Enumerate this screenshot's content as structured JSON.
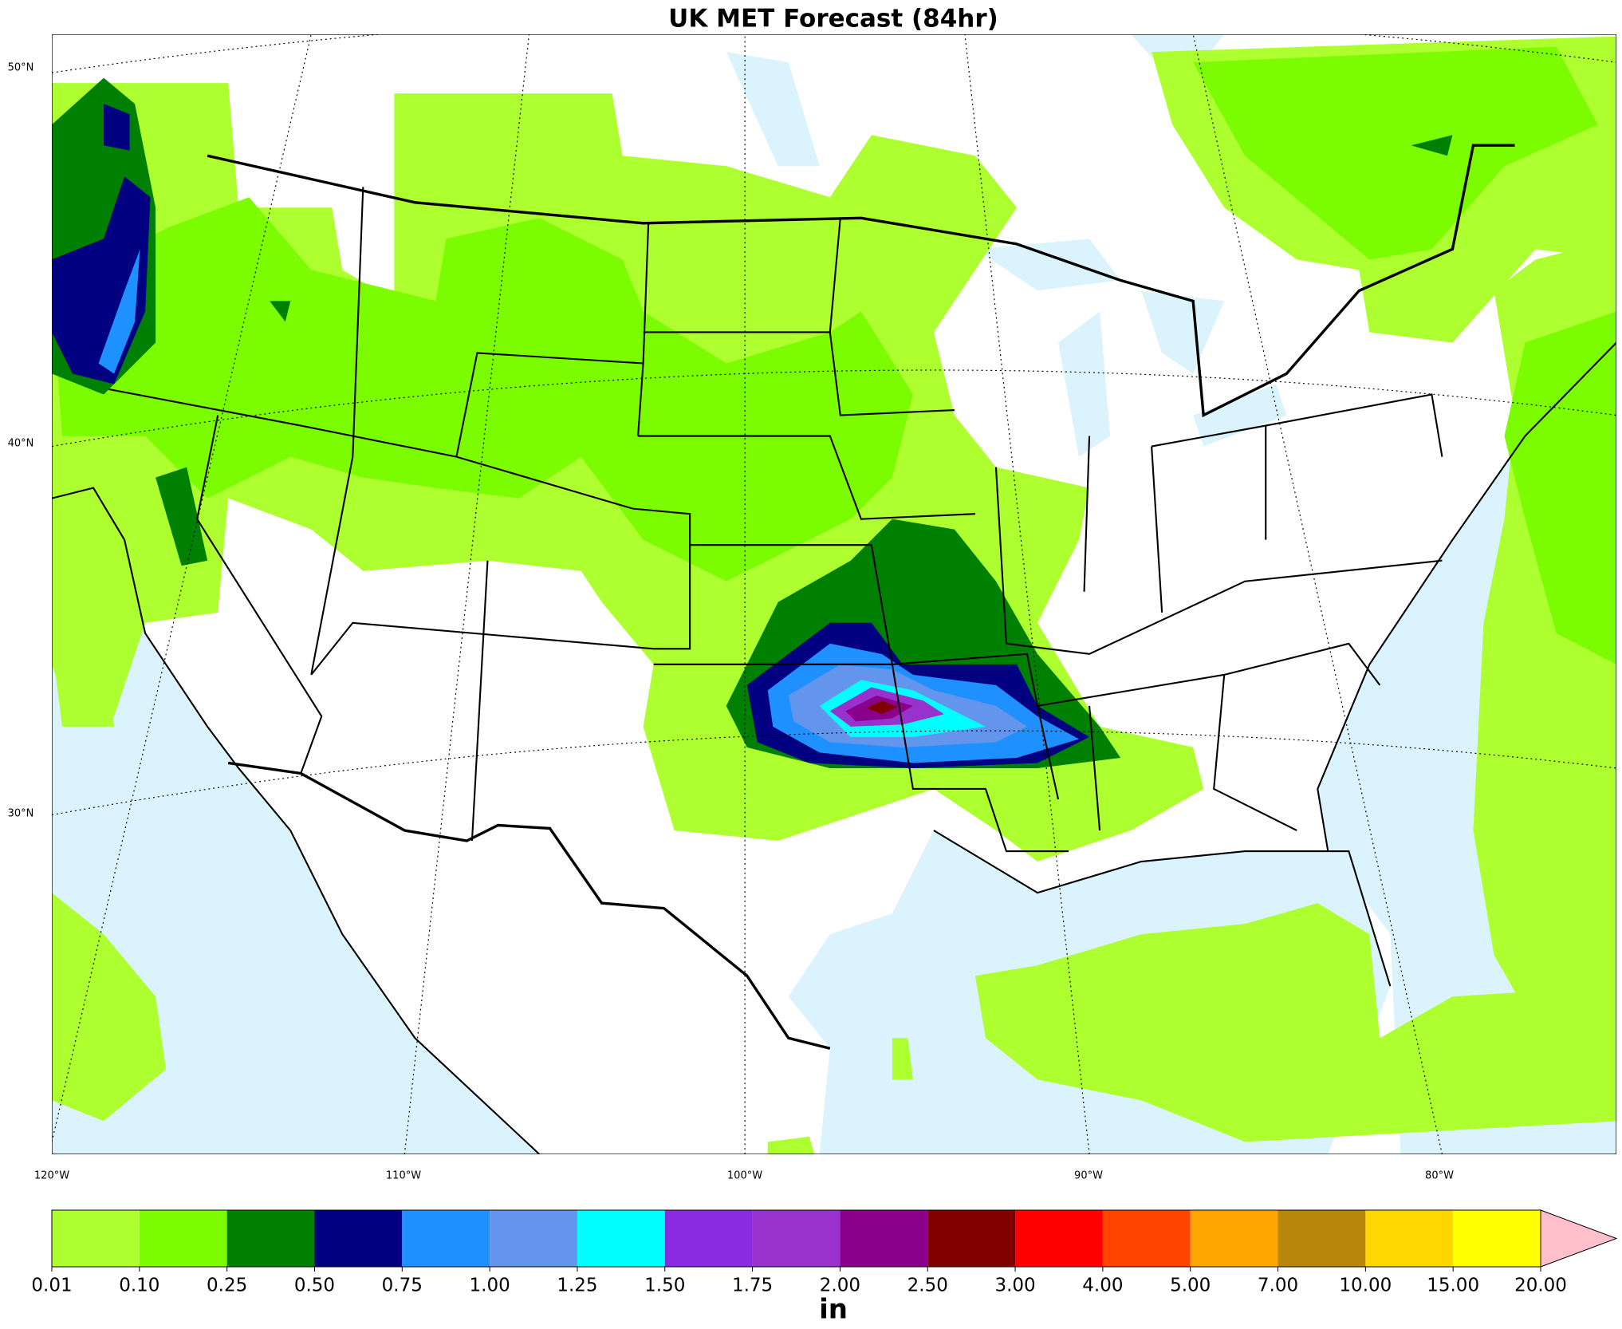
{
  "title": "UK MET Forecast (84hr)",
  "map": {
    "lat_labels": [
      "50°N",
      "40°N",
      "30°N"
    ],
    "lon_labels": [
      "120°W",
      "110°W",
      "100°W",
      "90°W",
      "80°W"
    ]
  },
  "colorbar": {
    "label": "in",
    "ticks": [
      {
        "value": 0.01,
        "label": "0.01"
      },
      {
        "value": 0.1,
        "label": "0.10"
      },
      {
        "value": 0.25,
        "label": "0.25"
      },
      {
        "value": 0.5,
        "label": "0.50"
      },
      {
        "value": 0.75,
        "label": "0.75"
      },
      {
        "value": 1,
        "label": "1.00"
      },
      {
        "value": 1.25,
        "label": "1.25"
      },
      {
        "value": 1.5,
        "label": "1.50"
      },
      {
        "value": 1.75,
        "label": "1.75"
      },
      {
        "value": 2,
        "label": "2.00"
      },
      {
        "value": 2.5,
        "label": "2.50"
      },
      {
        "value": 3,
        "label": "3.00"
      },
      {
        "value": 4,
        "label": "4.00"
      },
      {
        "value": 5,
        "label": "5.00"
      },
      {
        "value": 7,
        "label": "7.00"
      },
      {
        "value": 10,
        "label": "10.00"
      },
      {
        "value": 15,
        "label": "15.00"
      },
      {
        "value": 20,
        "label": "20.00"
      }
    ],
    "colors": [
      "#adff2f",
      "#7cfc00",
      "#008000",
      "#000080",
      "#1e90ff",
      "#6495ed",
      "#00ffff",
      "#8a2be2",
      "#9932cc",
      "#8b008b",
      "#800000",
      "#ff0000",
      "#ff4500",
      "#ffa500",
      "#b8860b",
      "#ffd700",
      "#ffff00"
    ],
    "extend_color": "#ffc0cb"
  }
}
